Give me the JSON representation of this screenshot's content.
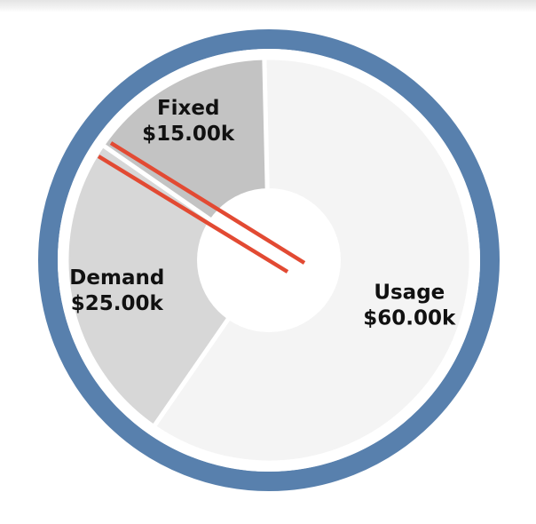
{
  "chart_data": {
    "type": "pie",
    "title": "",
    "categories": [
      "Usage",
      "Demand",
      "Fixed"
    ],
    "values": [
      60000,
      25000,
      15000
    ],
    "labels": [
      {
        "name": "Usage",
        "value": "$60.00k"
      },
      {
        "name": "Demand",
        "value": "$25.00k"
      },
      {
        "name": "Fixed",
        "value": "$15.00k"
      }
    ],
    "slice_colors": [
      "#f4f4f4",
      "#d7d7d7",
      "#c3c3c3"
    ],
    "ring_color": "#5880ad",
    "marker_color": "#e24a33",
    "legend": "none"
  }
}
